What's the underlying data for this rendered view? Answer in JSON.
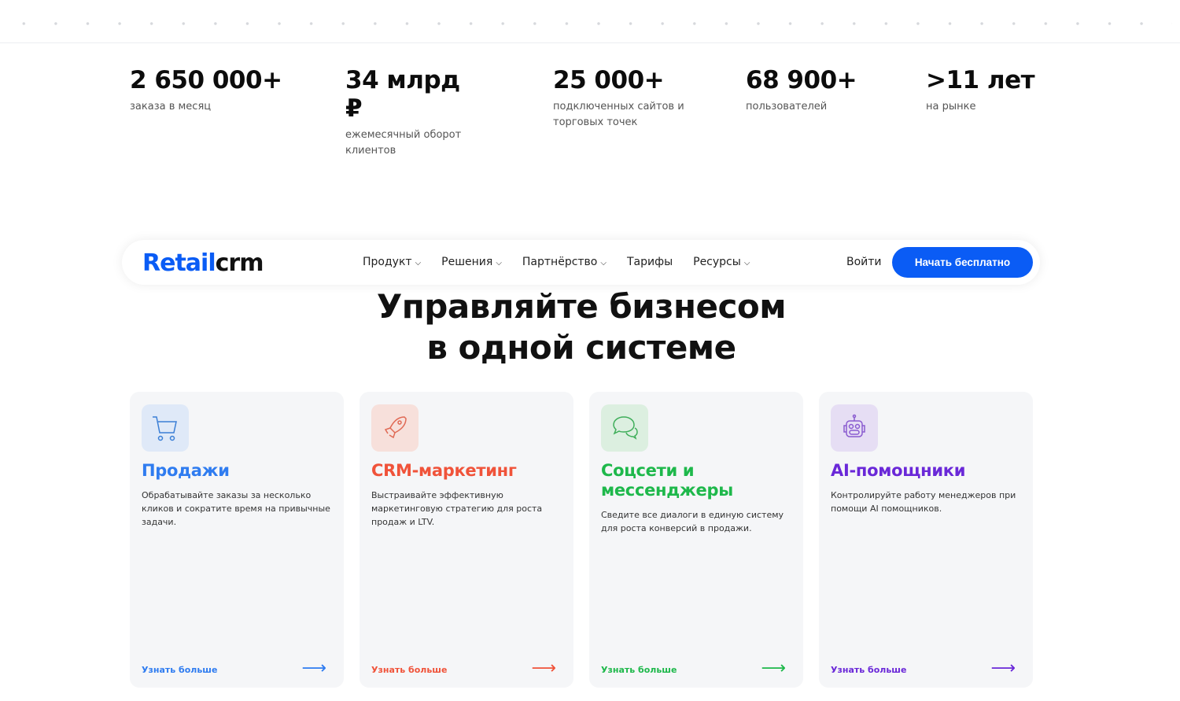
{
  "stats": [
    {
      "value": "2 650 000+",
      "label": "заказа в месяц"
    },
    {
      "value": "34 млрд ₽",
      "label": "ежемесячный оборот клиентов"
    },
    {
      "value": "25 000+",
      "label": "подключенных сайтов и торговых точек"
    },
    {
      "value": "68 900+",
      "label": "пользователей"
    },
    {
      "value": ">11 лет",
      "label": "на рынке"
    }
  ],
  "nav": {
    "logo_part1": "Retail",
    "logo_part2": "crm",
    "items": [
      "Продукт",
      "Решения",
      "Партнёрство",
      "Тарифы",
      "Ресурсы"
    ],
    "login": "Войти",
    "cta": "Начать бесплатно"
  },
  "hero": {
    "line1": "Управляйте бизнесом",
    "line2": "в одной системе"
  },
  "cards": [
    {
      "title": "Продажи",
      "text": "Обрабатывайте заказы за несколько кликов и сократите время на привычные задачи.",
      "more": "Узнать больше",
      "color": "#2f7cf0",
      "icon": "cart-icon"
    },
    {
      "title": "CRM-маркетинг",
      "text": "Выстраивайте эффективную маркетинговую стратегию для роста продаж и LTV.",
      "more": "Узнать больше",
      "color": "#f0533a",
      "icon": "rocket-icon"
    },
    {
      "title": "Соцсети и мессенджеры",
      "text": "Сведите все диалоги в единую систему для роста конверсий в продажи.",
      "more": "Узнать больше",
      "color": "#1eb84b",
      "icon": "chat-icon"
    },
    {
      "title": "AI-помощники",
      "text": "Контролируйте работу менеджеров при помощи AI помощников.",
      "more": "Узнать больше",
      "color": "#6a28d8",
      "icon": "robot-icon"
    }
  ]
}
